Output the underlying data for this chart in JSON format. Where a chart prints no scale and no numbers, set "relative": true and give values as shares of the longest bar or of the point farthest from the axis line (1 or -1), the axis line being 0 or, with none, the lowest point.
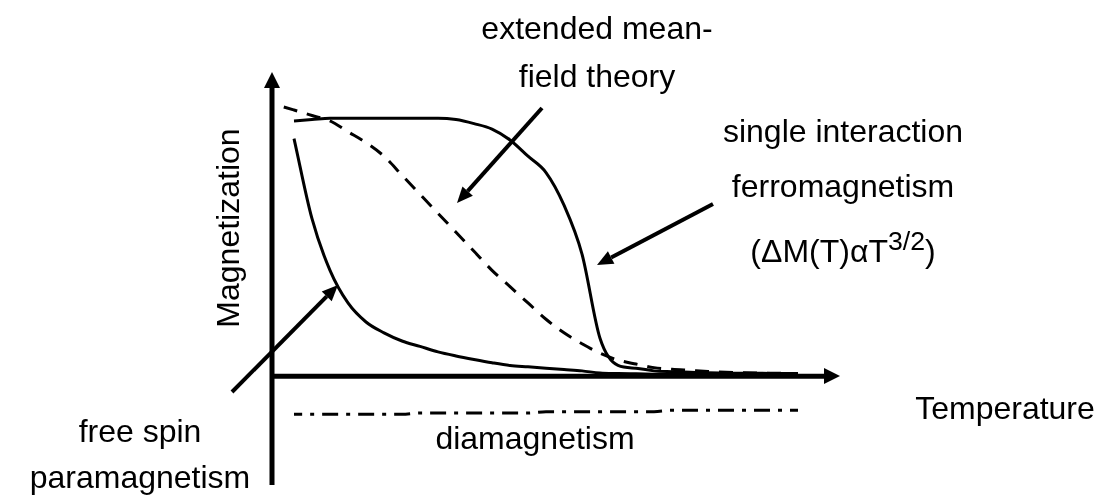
{
  "chart_data": {
    "type": "line",
    "relative": true,
    "xlabel": "Temperature",
    "ylabel": "Magnetization",
    "legend": false,
    "marker": "none",
    "annotations": [
      "single interaction ferromagnetism (ΔM(T)αT$^{3/2}$)",
      "free spin paramagnetism",
      "extended mean-field theory"
    ],
    "categories": [
      null,
      null,
      null,
      null,
      null,
      null,
      null,
      null,
      null,
      null,
      null,
      null,
      null,
      null,
      null,
      null,
      null,
      null,
      null,
      null,
      null,
      null,
      null,
      null,
      null,
      null,
      null,
      null,
      null,
      null
    ],
    "series": [
      {
        "color": "#000000",
        "line_style": "solid",
        "values": [
          null,
          0.94,
          0.945,
          0.95,
          0.95,
          0.95,
          0.95,
          0.95,
          0.95,
          0.95,
          0.945,
          0.93,
          0.91,
          0.87,
          0.81,
          0.75,
          0.63,
          0.45,
          0.14,
          0.04,
          0.03,
          0.02,
          0.017,
          0.015,
          0.013,
          0.012,
          0.011,
          0.011,
          0.01,
          0.01
        ]
      },
      {
        "color": "#000000",
        "line_style": "solid",
        "values": [
          null,
          0.875,
          0.58,
          0.39,
          0.27,
          0.2,
          0.16,
          0.13,
          0.11,
          0.09,
          0.075,
          0.062,
          0.05,
          0.04,
          0.035,
          0.03,
          0.025,
          0.02,
          0.012,
          0.01,
          0.009,
          0.008,
          0.007,
          0.007,
          0.006,
          0.006,
          0.005,
          0.005,
          0.004,
          0.004
        ]
      },
      {
        "color": "#000000",
        "line_style": "dashed",
        "values": [
          1,
          0.98,
          0.96,
          0.94,
          0.9,
          0.86,
          0.81,
          0.74,
          0.67,
          0.6,
          0.53,
          0.46,
          0.39,
          0.33,
          0.27,
          0.21,
          0.16,
          0.12,
          0.085,
          0.06,
          0.045,
          0.032,
          0.026,
          0.022,
          0.018,
          0.015,
          0.013,
          0.012,
          0.011,
          0.01
        ]
      },
      {
        "name": "diamagnetism",
        "color": "#000000",
        "line_style": "dashdot",
        "values": [
          null,
          -0.14,
          -0.14,
          -0.14,
          -0.14,
          -0.14,
          -0.14,
          -0.14,
          -0.135,
          -0.135,
          -0.135,
          -0.135,
          -0.135,
          -0.135,
          -0.135,
          -0.13,
          -0.13,
          -0.13,
          -0.13,
          -0.13,
          -0.13,
          -0.13,
          -0.125,
          -0.125,
          -0.125,
          -0.125,
          -0.125,
          -0.125,
          -0.125,
          -0.125
        ]
      }
    ]
  }
}
